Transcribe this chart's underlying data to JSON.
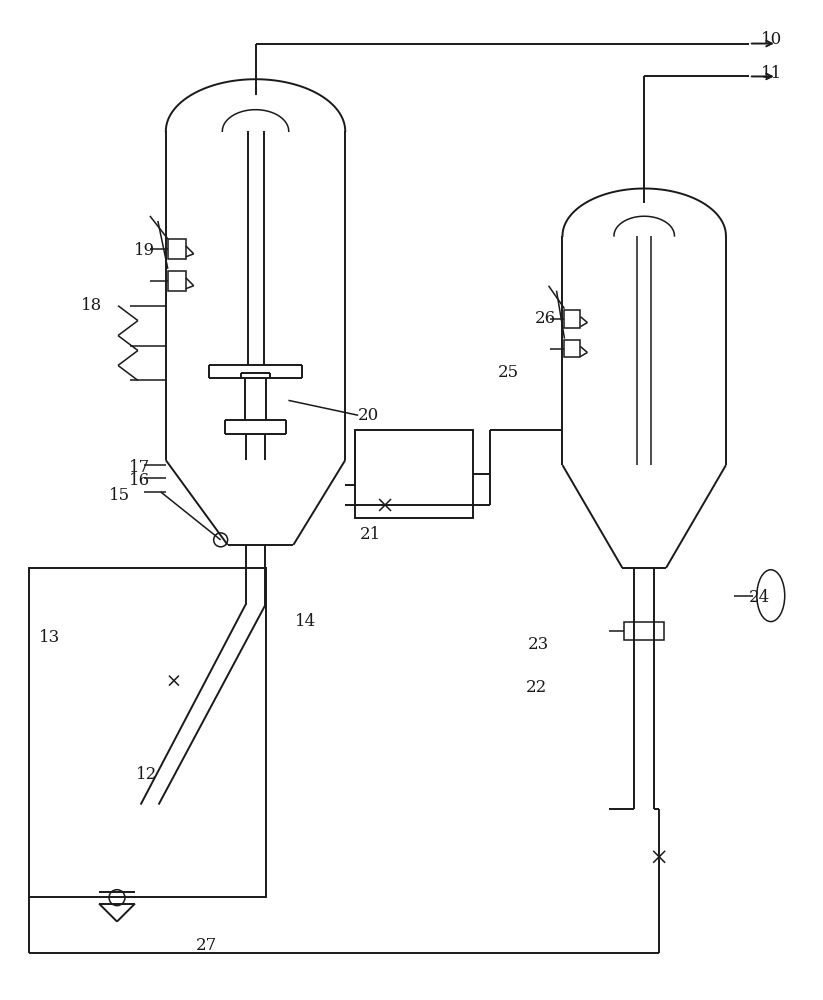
{
  "bg_color": "#ffffff",
  "line_color": "#1a1a1a",
  "lw": 1.4,
  "lw_thin": 1.1
}
